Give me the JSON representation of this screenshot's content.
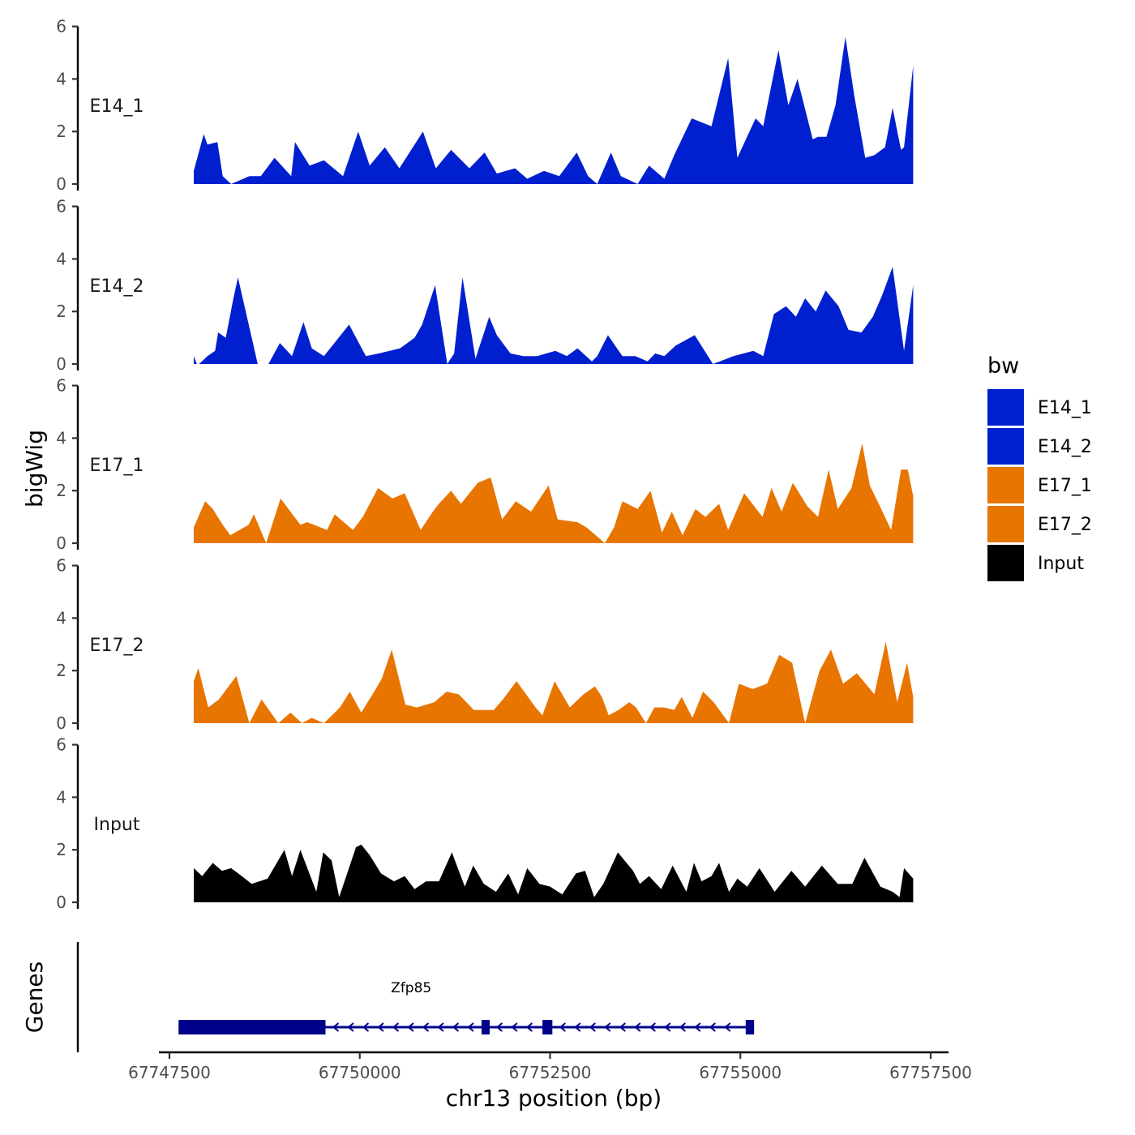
{
  "chart_data": {
    "type": "area",
    "title": "",
    "ylabel": "bigWig",
    "xlabel": "chr13 position (bp)",
    "xlim": [
      67747330,
      67757330
    ],
    "x_ticks": [
      67747500,
      67750000,
      67752500,
      67755000,
      67757500
    ],
    "x_tick_labels": [
      "67747500",
      "67750000",
      "67752500",
      "67755000",
      "67757500"
    ],
    "ylim": [
      0,
      6
    ],
    "y_ticks": [
      0,
      2,
      4,
      6
    ],
    "y_tick_labels": [
      "0",
      "2",
      "4",
      "6"
    ],
    "legend": {
      "title": "bw",
      "position": "right",
      "entries": [
        {
          "label": "E14_1",
          "color": "#0020D0"
        },
        {
          "label": "E14_2",
          "color": "#0020D0"
        },
        {
          "label": "E17_1",
          "color": "#E87500"
        },
        {
          "label": "E17_2",
          "color": "#E87500"
        },
        {
          "label": "Input",
          "color": "#000000"
        }
      ]
    },
    "series": [
      {
        "name": "E14_1",
        "color": "#0020D0",
        "x": [
          67747820,
          67747950,
          67748000,
          67748130,
          67748200,
          67748310,
          67748550,
          67748700,
          67748880,
          67749100,
          67749150,
          67749340,
          67749530,
          67749780,
          67749980,
          67750130,
          67750330,
          67750520,
          67750830,
          67751000,
          67751200,
          67751440,
          67751640,
          67751800,
          67752040,
          67752200,
          67752420,
          67752620,
          67752850,
          67753000,
          67753120,
          67753300,
          67753430,
          67753650,
          67753800,
          67754000,
          67754130,
          67754360,
          67754620,
          67754840,
          67754960,
          67755200,
          67755300,
          67755500,
          67755630,
          67755750,
          67755950,
          67756020,
          67756130,
          67756250,
          67756380,
          67756500,
          67756640,
          67756760,
          67756900,
          67757000,
          67757110,
          67757150,
          67757270
        ],
        "values": [
          0.5,
          1.9,
          1.5,
          1.6,
          0.3,
          0.0,
          0.3,
          0.3,
          1.0,
          0.3,
          1.6,
          0.7,
          0.9,
          0.3,
          2.0,
          0.7,
          1.4,
          0.6,
          2.0,
          0.6,
          1.3,
          0.6,
          1.2,
          0.4,
          0.6,
          0.2,
          0.5,
          0.3,
          1.2,
          0.3,
          0.0,
          1.2,
          0.3,
          0.0,
          0.7,
          0.2,
          1.1,
          2.5,
          2.2,
          4.8,
          1.0,
          2.5,
          2.2,
          5.1,
          3.0,
          4.0,
          1.7,
          1.8,
          1.8,
          3.0,
          5.6,
          3.3,
          1.0,
          1.1,
          1.4,
          2.9,
          1.3,
          1.4,
          4.5
        ]
      },
      {
        "name": "E14_2",
        "color": "#0020D0",
        "x": [
          67747820,
          67747860,
          67747890,
          67748000,
          67748100,
          67748140,
          67748240,
          67748340,
          67748400,
          67748660,
          67748800,
          67748950,
          67749110,
          67749260,
          67749370,
          67749530,
          67749860,
          67750080,
          67750250,
          67750530,
          67750720,
          67750820,
          67750990,
          67751150,
          67751240,
          67751350,
          67751520,
          67751700,
          67751800,
          67751980,
          67752150,
          67752330,
          67752570,
          67752720,
          67752860,
          67753050,
          67753120,
          67753260,
          67753450,
          67753620,
          67753780,
          67753880,
          67754000,
          67754150,
          67754400,
          67754640,
          67754910,
          67755170,
          67755300,
          67755440,
          67755600,
          67755730,
          67755850,
          67755990,
          67756120,
          67756290,
          67756420,
          67756590,
          67756740,
          67756860,
          67757000,
          67757150,
          67757270
        ],
        "values": [
          0.3,
          0.0,
          0.0,
          0.3,
          0.5,
          1.2,
          1.0,
          2.5,
          3.3,
          0.0,
          0.0,
          0.8,
          0.3,
          1.6,
          0.6,
          0.3,
          1.5,
          0.3,
          0.4,
          0.6,
          1.0,
          1.5,
          3.0,
          0.0,
          0.4,
          3.3,
          0.2,
          1.8,
          1.1,
          0.4,
          0.3,
          0.3,
          0.5,
          0.3,
          0.6,
          0.1,
          0.3,
          1.1,
          0.3,
          0.3,
          0.1,
          0.4,
          0.3,
          0.7,
          1.1,
          0.0,
          0.3,
          0.5,
          0.3,
          1.9,
          2.2,
          1.8,
          2.5,
          2.0,
          2.8,
          2.2,
          1.3,
          1.2,
          1.8,
          2.6,
          3.7,
          0.5,
          3.0
        ]
      },
      {
        "name": "E17_1",
        "color": "#E87500",
        "x": [
          67747820,
          67747970,
          67748070,
          67748200,
          67748300,
          67748540,
          67748610,
          67748770,
          67748960,
          67749220,
          67749310,
          67749570,
          67749670,
          67749910,
          67750040,
          67750240,
          67750430,
          67750590,
          67750800,
          67750960,
          67751040,
          67751200,
          67751330,
          67751550,
          67751720,
          67751870,
          67752050,
          67752250,
          67752480,
          67752600,
          67752860,
          67752980,
          67753220,
          67753340,
          67753450,
          67753650,
          67753820,
          67753970,
          67754100,
          67754240,
          67754410,
          67754540,
          67754720,
          67754840,
          67755050,
          67755290,
          67755410,
          67755540,
          67755690,
          67755880,
          67756020,
          67756160,
          67756280,
          67756460,
          67756600,
          67756700,
          67756850,
          67756980,
          67757110,
          67757200,
          67757270
        ],
        "values": [
          0.6,
          1.6,
          1.3,
          0.7,
          0.3,
          0.7,
          1.1,
          0.0,
          1.7,
          0.7,
          0.8,
          0.5,
          1.1,
          0.5,
          1.0,
          2.1,
          1.7,
          1.9,
          0.5,
          1.2,
          1.5,
          2.0,
          1.5,
          2.3,
          2.5,
          0.9,
          1.6,
          1.2,
          2.2,
          0.9,
          0.8,
          0.6,
          0.0,
          0.6,
          1.6,
          1.3,
          2.0,
          0.4,
          1.2,
          0.3,
          1.3,
          1.0,
          1.5,
          0.5,
          1.9,
          1.0,
          2.1,
          1.2,
          2.3,
          1.4,
          1.0,
          2.8,
          1.3,
          2.1,
          3.8,
          2.2,
          1.3,
          0.5,
          2.8,
          2.8,
          1.8
        ]
      },
      {
        "name": "E17_2",
        "color": "#E87500",
        "x": [
          67747820,
          67747880,
          67748010,
          67748150,
          67748380,
          67748550,
          67748710,
          67748930,
          67749090,
          67749240,
          67749370,
          67749530,
          67749740,
          67749870,
          67750020,
          67750210,
          67750290,
          67750420,
          67750600,
          67750750,
          67750980,
          67751140,
          67751300,
          67751500,
          67751630,
          67751760,
          67751880,
          67752060,
          67752310,
          67752400,
          67752560,
          67752760,
          67752940,
          67753090,
          67753180,
          67753270,
          67753400,
          67753540,
          67753630,
          67753760,
          67753870,
          67754000,
          67754130,
          67754230,
          67754370,
          67754510,
          67754650,
          67754850,
          67754980,
          67755160,
          67755350,
          67755510,
          67755680,
          67755850,
          67756040,
          67756190,
          67756350,
          67756530,
          67756760,
          67756910,
          67757060,
          67757190,
          67757270
        ],
        "values": [
          1.6,
          2.1,
          0.6,
          0.9,
          1.8,
          0.0,
          0.9,
          0.0,
          0.4,
          0.0,
          0.2,
          0.0,
          0.6,
          1.2,
          0.4,
          1.3,
          1.7,
          2.8,
          0.7,
          0.6,
          0.8,
          1.2,
          1.1,
          0.5,
          0.5,
          0.5,
          0.9,
          1.6,
          0.6,
          0.3,
          1.6,
          0.6,
          1.1,
          1.4,
          1.0,
          0.3,
          0.5,
          0.8,
          0.6,
          0.0,
          0.6,
          0.6,
          0.5,
          1.0,
          0.2,
          1.2,
          0.8,
          0.0,
          1.5,
          1.3,
          1.5,
          2.6,
          2.3,
          0.0,
          2.0,
          2.8,
          1.5,
          1.9,
          1.1,
          3.1,
          0.8,
          2.3,
          1.0
        ]
      },
      {
        "name": "Input",
        "color": "#000000",
        "x": [
          67747820,
          67747930,
          67748070,
          67748190,
          67748310,
          67748450,
          67748580,
          67748790,
          67749010,
          67749110,
          67749220,
          67749430,
          67749520,
          67749630,
          67749730,
          67749950,
          67750020,
          67750130,
          67750280,
          67750450,
          67750590,
          67750720,
          67750870,
          67751040,
          67751210,
          67751380,
          67751490,
          67751630,
          67751790,
          67751950,
          67752080,
          67752200,
          67752360,
          67752500,
          67752660,
          67752840,
          67752960,
          67753080,
          67753200,
          67753390,
          67753590,
          67753680,
          67753800,
          67753960,
          67754110,
          67754290,
          67754390,
          67754490,
          67754620,
          67754720,
          67754850,
          67754960,
          67755090,
          67755250,
          67755450,
          67755670,
          67755850,
          67756070,
          67756280,
          67756470,
          67756630,
          67756840,
          67757000,
          67757090,
          67757150,
          67757270
        ],
        "values": [
          1.3,
          1.0,
          1.5,
          1.2,
          1.3,
          1.0,
          0.7,
          0.9,
          2.0,
          1.0,
          2.0,
          0.4,
          1.9,
          1.6,
          0.2,
          2.1,
          2.2,
          1.8,
          1.1,
          0.8,
          1.0,
          0.5,
          0.8,
          0.8,
          1.9,
          0.6,
          1.4,
          0.7,
          0.4,
          1.1,
          0.3,
          1.3,
          0.7,
          0.6,
          0.3,
          1.1,
          1.2,
          0.2,
          0.7,
          1.9,
          1.2,
          0.7,
          1.0,
          0.5,
          1.4,
          0.4,
          1.5,
          0.8,
          1.0,
          1.5,
          0.4,
          0.9,
          0.6,
          1.3,
          0.4,
          1.2,
          0.6,
          1.4,
          0.7,
          0.7,
          1.7,
          0.6,
          0.4,
          0.2,
          1.3,
          0.9
        ]
      }
    ],
    "gene_track": {
      "ylabel": "Genes",
      "gene": "Zfp85",
      "strand": "-",
      "start": 67747620,
      "end": 67755180,
      "color": "#00008B",
      "exons": [
        {
          "start": 67747620,
          "end": 67749550
        },
        {
          "start": 67751600,
          "end": 67751700
        },
        {
          "start": 67752400,
          "end": 67752530
        },
        {
          "start": 67755070,
          "end": 67755180
        }
      ]
    }
  }
}
